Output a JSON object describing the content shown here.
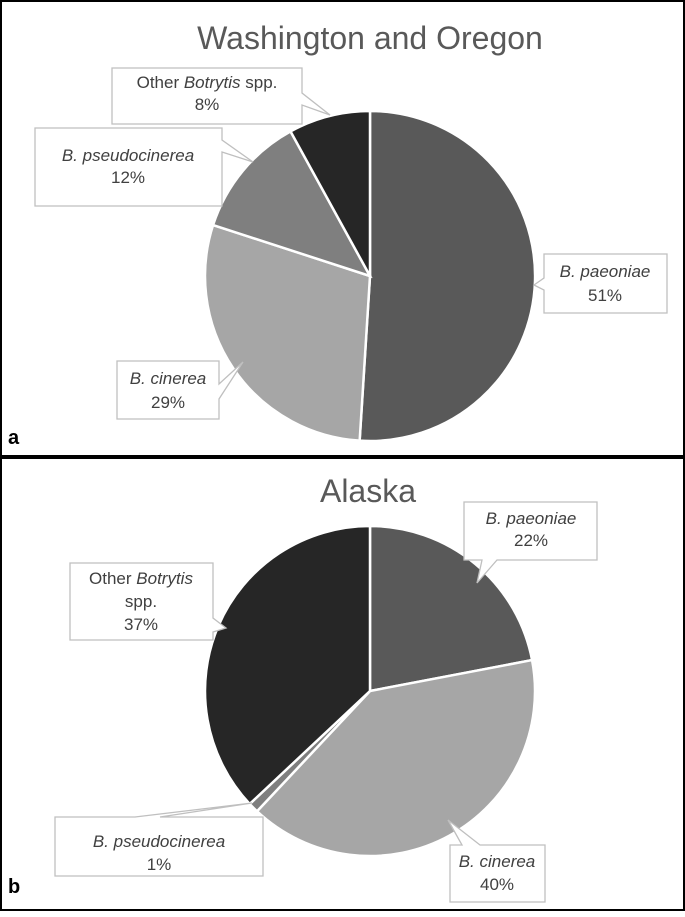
{
  "colors": {
    "b_paeoniae": "#595959",
    "b_cinerea": "#a6a6a6",
    "b_pseudocinerea": "#7f7f7f",
    "other": "#262626"
  },
  "chart_data": [
    {
      "type": "pie",
      "panel": "a",
      "title": "Washington and Oregon",
      "slices": [
        {
          "label_italic": "B. paeoniae",
          "label_plain": "",
          "value": 51,
          "pct_label": "51%",
          "color": "#595959"
        },
        {
          "label_italic": "B. cinerea",
          "label_plain": "",
          "value": 29,
          "pct_label": "29%",
          "color": "#a6a6a6"
        },
        {
          "label_italic": "B. pseudocinerea",
          "label_plain": "",
          "value": 12,
          "pct_label": "12%",
          "color": "#7f7f7f"
        },
        {
          "label_prefix": "Other ",
          "label_italic": "Botrytis",
          "label_plain": " spp.",
          "value": 8,
          "pct_label": "8%",
          "color": "#262626"
        }
      ]
    },
    {
      "type": "pie",
      "panel": "b",
      "title": "Alaska",
      "slices": [
        {
          "label_italic": "B. paeoniae",
          "label_plain": "",
          "value": 22,
          "pct_label": "22%",
          "color": "#595959"
        },
        {
          "label_italic": "B. cinerea",
          "label_plain": "",
          "value": 40,
          "pct_label": "40%",
          "color": "#a6a6a6"
        },
        {
          "label_italic": "B. pseudocinerea",
          "label_plain": "",
          "value": 1,
          "pct_label": "1%",
          "color": "#7f7f7f"
        },
        {
          "label_prefix": "Other ",
          "label_italic": "Botrytis",
          "label_plain": "spp.",
          "value": 37,
          "pct_label": "37%",
          "color": "#262626"
        }
      ]
    }
  ]
}
